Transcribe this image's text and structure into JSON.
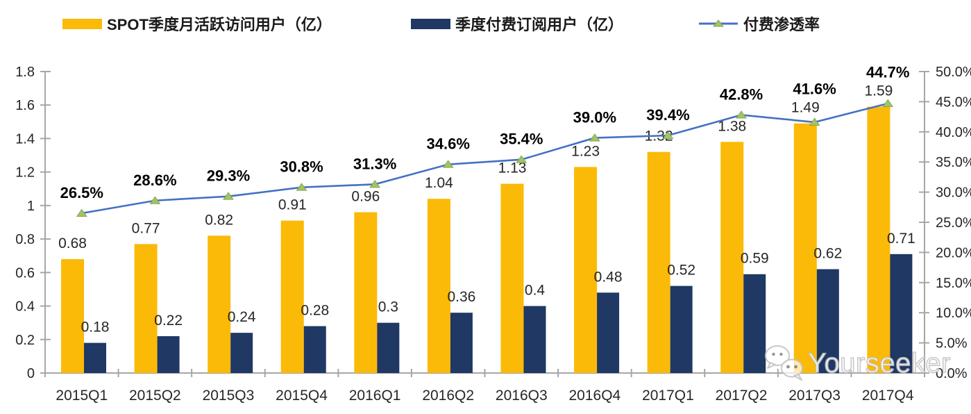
{
  "legend": {
    "items": [
      {
        "label": "SPOT季度月活跃访问用户（亿）",
        "icon": "bar-swatch"
      },
      {
        "label": "季度付费订阅用户（亿）",
        "icon": "bar-swatch"
      },
      {
        "label": "付费渗透率",
        "icon": "line-marker"
      }
    ]
  },
  "chart_data": {
    "type": "combo-bar-line",
    "title": "",
    "legend_position": "top",
    "grid": "off",
    "categories": [
      "2015Q1",
      "2015Q2",
      "2015Q3",
      "2015Q4",
      "2016Q1",
      "2016Q2",
      "2016Q3",
      "2016Q4",
      "2017Q1",
      "2017Q2",
      "2017Q3",
      "2017Q4"
    ],
    "series": [
      {
        "name": "SPOT季度月活跃访问用户（亿）",
        "type": "bar",
        "axis": "left",
        "color": "#FBBA07",
        "values": [
          0.68,
          0.77,
          0.82,
          0.91,
          0.96,
          1.04,
          1.13,
          1.23,
          1.32,
          1.38,
          1.49,
          1.59
        ],
        "labels": [
          "0.68",
          "0.77",
          "0.82",
          "0.91",
          "0.96",
          "1.04",
          "1.13",
          "1.23",
          "1.32",
          "1.38",
          "1.49",
          "1.59"
        ]
      },
      {
        "name": "季度付费订阅用户（亿）",
        "type": "bar",
        "axis": "left",
        "color": "#1F3864",
        "values": [
          0.18,
          0.22,
          0.24,
          0.28,
          0.3,
          0.36,
          0.4,
          0.48,
          0.52,
          0.59,
          0.62,
          0.71
        ],
        "labels": [
          "0.18",
          "0.22",
          "0.24",
          "0.28",
          "0.3",
          "0.36",
          "0.4",
          "0.48",
          "0.52",
          "0.59",
          "0.62",
          "0.71"
        ]
      },
      {
        "name": "付费渗透率",
        "type": "line",
        "axis": "right",
        "color": "#4471C4",
        "marker": "triangle",
        "marker_color": "#A4C266",
        "marker_edge_color": "#86A64B",
        "values": [
          26.5,
          28.6,
          29.3,
          30.8,
          31.3,
          34.6,
          35.4,
          39.0,
          39.4,
          42.8,
          41.6,
          44.7
        ],
        "labels": [
          "26.5%",
          "28.6%",
          "29.3%",
          "30.8%",
          "31.3%",
          "34.6%",
          "35.4%",
          "39.0%",
          "39.4%",
          "42.8%",
          "41.6%",
          "44.7%"
        ]
      }
    ],
    "left_axis": {
      "min": 0,
      "max": 1.8,
      "tick_labels": [
        "0",
        "0.2",
        "0.4",
        "0.6",
        "0.8",
        "1",
        "1.2",
        "1.4",
        "1.6",
        "1.8"
      ]
    },
    "right_axis": {
      "min": 0,
      "max": 50,
      "tick_labels": [
        "0.0%",
        "5.0%",
        "10.0%",
        "15.0%",
        "20.0%",
        "25.0%",
        "30.0%",
        "35.0%",
        "40.0%",
        "45.0%",
        "50.0%"
      ]
    }
  },
  "watermark": {
    "text": "Yourseeker",
    "icon": "wechat-icon"
  },
  "colors": {
    "axis": "#A6A6A6",
    "tick_text": "#262626",
    "bar_label_text": "#262626",
    "pct_label_text": "#000000"
  }
}
